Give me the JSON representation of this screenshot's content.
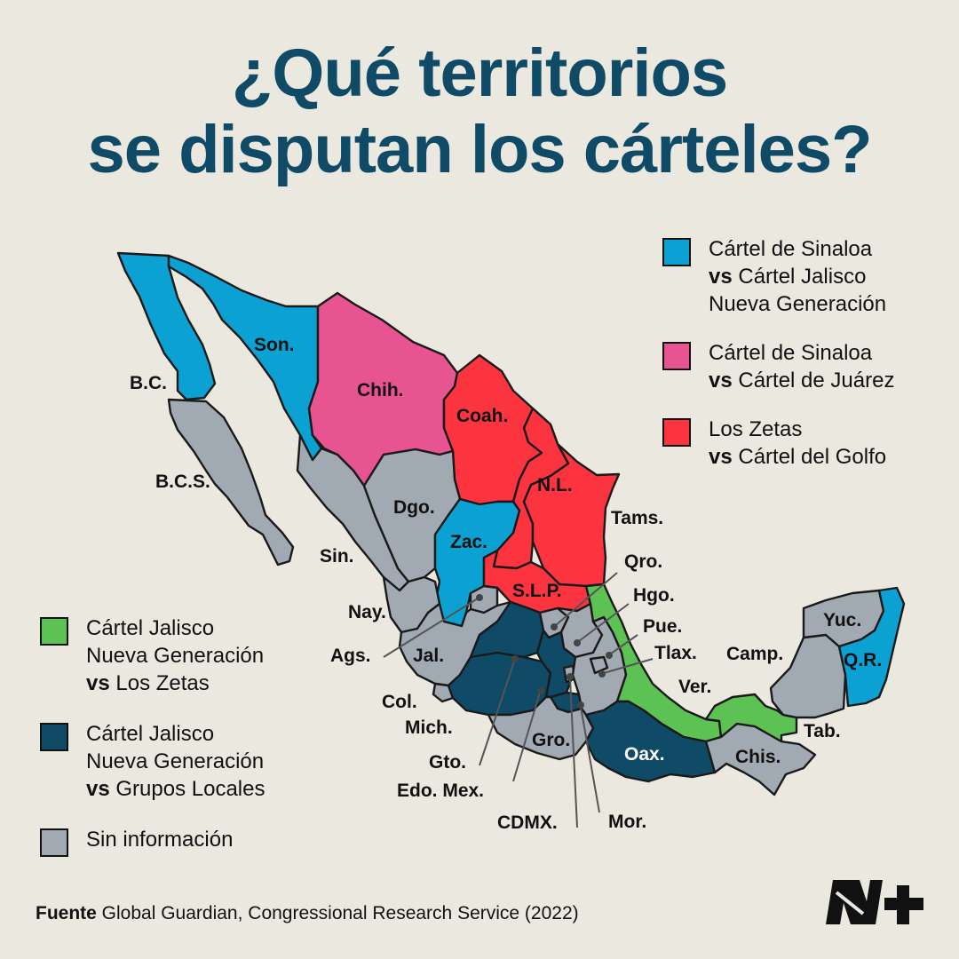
{
  "title": {
    "line1": "¿Qué territorios",
    "line2": "se disputan los cárteles?"
  },
  "colors": {
    "background": "#ebe8df",
    "title": "#0f4a66",
    "sinaloa_vs_cjng": "#0ba2d3",
    "sinaloa_vs_juarez": "#e85391",
    "zetas_vs_golfo": "#fb3440",
    "cjng_vs_zetas": "#5dc254",
    "cjng_vs_locales": "#0f4a66",
    "sin_informacion": "#a1a9b2"
  },
  "legend_top": [
    {
      "color_key": "sinaloa_vs_cjng",
      "lines": [
        {
          "text": "Cártel de Sinaloa"
        },
        {
          "bold": "vs",
          "text": " Cártel Jalisco"
        },
        {
          "text": "Nueva Generación"
        }
      ]
    },
    {
      "color_key": "sinaloa_vs_juarez",
      "lines": [
        {
          "text": "Cártel de Sinaloa"
        },
        {
          "bold": "vs",
          "text": " Cártel de Juárez"
        }
      ]
    },
    {
      "color_key": "zetas_vs_golfo",
      "lines": [
        {
          "text": "Los Zetas"
        },
        {
          "bold": "vs",
          "text": " Cártel del Golfo"
        }
      ]
    }
  ],
  "legend_bottom": [
    {
      "color_key": "cjng_vs_zetas",
      "lines": [
        {
          "text": "Cártel Jalisco"
        },
        {
          "text": "Nueva Generación"
        },
        {
          "bold": "vs",
          "text": " Los Zetas"
        }
      ]
    },
    {
      "color_key": "cjng_vs_locales",
      "lines": [
        {
          "text": "Cártel Jalisco"
        },
        {
          "text": "Nueva Generación"
        },
        {
          "bold": "vs",
          "text": " Grupos Locales"
        }
      ]
    },
    {
      "color_key": "sin_informacion",
      "lines": [
        {
          "text": "Sin información"
        }
      ]
    }
  ],
  "states": [
    {
      "id": "bc",
      "label": "B.C.",
      "category": "sinaloa_vs_cjng"
    },
    {
      "id": "bcs",
      "label": "B.C.S.",
      "category": "sin_informacion"
    },
    {
      "id": "son",
      "label": "Son.",
      "category": "sinaloa_vs_cjng"
    },
    {
      "id": "chih",
      "label": "Chih.",
      "category": "sinaloa_vs_juarez"
    },
    {
      "id": "coah",
      "label": "Coah.",
      "category": "zetas_vs_golfo"
    },
    {
      "id": "nl",
      "label": "N.L.",
      "category": "zetas_vs_golfo"
    },
    {
      "id": "tams",
      "label": "Tams.",
      "category": "zetas_vs_golfo"
    },
    {
      "id": "sin",
      "label": "Sin.",
      "category": "sin_informacion"
    },
    {
      "id": "dgo",
      "label": "Dgo.",
      "category": "sin_informacion"
    },
    {
      "id": "zac",
      "label": "Zac.",
      "category": "sinaloa_vs_cjng"
    },
    {
      "id": "slp",
      "label": "S.L.P.",
      "category": "zetas_vs_golfo"
    },
    {
      "id": "nay",
      "label": "Nay.",
      "category": "sin_informacion"
    },
    {
      "id": "ags",
      "label": "Ags.",
      "category": "sin_informacion"
    },
    {
      "id": "jal",
      "label": "Jal.",
      "category": "sin_informacion"
    },
    {
      "id": "col",
      "label": "Col.",
      "category": "sin_informacion"
    },
    {
      "id": "mich",
      "label": "Mich.",
      "category": "cjng_vs_locales"
    },
    {
      "id": "gto",
      "label": "Gto.",
      "category": "cjng_vs_locales"
    },
    {
      "id": "qro",
      "label": "Qro.",
      "category": "sin_informacion"
    },
    {
      "id": "hgo",
      "label": "Hgo.",
      "category": "sin_informacion"
    },
    {
      "id": "edomex",
      "label": "Edo. Mex.",
      "category": "cjng_vs_locales"
    },
    {
      "id": "cdmx",
      "label": "CDMX.",
      "category": "sin_informacion"
    },
    {
      "id": "mor",
      "label": "Mor.",
      "category": "cjng_vs_locales"
    },
    {
      "id": "pue",
      "label": "Pue.",
      "category": "sin_informacion"
    },
    {
      "id": "tlax",
      "label": "Tlax.",
      "category": "sin_informacion"
    },
    {
      "id": "ver",
      "label": "Ver.",
      "category": "cjng_vs_zetas"
    },
    {
      "id": "gro",
      "label": "Gro.",
      "category": "sin_informacion"
    },
    {
      "id": "oax",
      "label": "Oax.",
      "category": "cjng_vs_locales"
    },
    {
      "id": "chis",
      "label": "Chis.",
      "category": "sin_informacion"
    },
    {
      "id": "tab",
      "label": "Tab.",
      "category": "cjng_vs_zetas"
    },
    {
      "id": "camp",
      "label": "Camp.",
      "category": "sin_informacion"
    },
    {
      "id": "yuc",
      "label": "Yuc.",
      "category": "sin_informacion"
    },
    {
      "id": "qr",
      "label": "Q.R.",
      "category": "sinaloa_vs_cjng"
    }
  ],
  "source": {
    "label": "Fuente",
    "text": " Global Guardian, Congressional Research Service (2022)"
  },
  "logo": {
    "name": "n-plus-logo"
  }
}
